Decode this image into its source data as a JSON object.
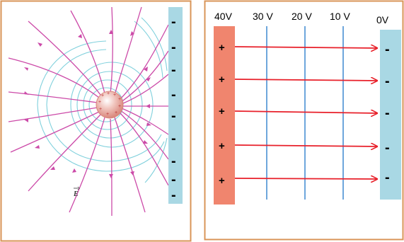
{
  "left_panel": {
    "field_symbol": "E",
    "plate_signs": [
      "-",
      "-",
      "-",
      "-",
      "-",
      "-",
      "-",
      "-",
      "-"
    ],
    "colors": {
      "field_lines": "#cc4aa8",
      "equipotentials": "#7fd0dc",
      "plate": "#a9d8e4",
      "charge": "#e8a8a0",
      "border": "#d99558"
    }
  },
  "right_panel": {
    "voltage_labels": [
      "40V",
      "30 V",
      "20 V",
      "10 V",
      "0V"
    ],
    "positive_signs": [
      "+",
      "+",
      "+",
      "+",
      "+"
    ],
    "negative_signs": [
      "-",
      "-",
      "-",
      "-",
      "-"
    ],
    "colors": {
      "positive_plate": "#f0856e",
      "negative_plate": "#a9d8e4",
      "arrows": "#e8202a",
      "equipotentials": "#4a8fd4",
      "border": "#d99558"
    }
  }
}
